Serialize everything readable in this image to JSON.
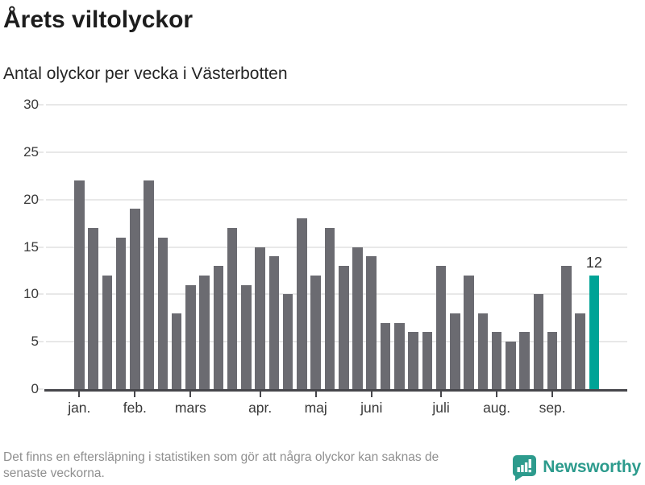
{
  "header": {
    "title": "Årets viltolyckor",
    "subtitle": "Antal olyckor per vecka i Västerbotten"
  },
  "chart_data": {
    "type": "bar",
    "title": "Årets viltolyckor",
    "subtitle": "Antal olyckor per vecka i Västerbotten",
    "xlabel": "",
    "ylabel": "",
    "ylim": [
      0,
      30
    ],
    "yticks": [
      0,
      5,
      10,
      15,
      20,
      25,
      30
    ],
    "grid": "horizontal",
    "legend": "none",
    "values": [
      22,
      17,
      12,
      16,
      19,
      22,
      16,
      8,
      11,
      12,
      13,
      17,
      11,
      15,
      14,
      10,
      18,
      12,
      17,
      13,
      15,
      14,
      7,
      7,
      6,
      6,
      13,
      8,
      12,
      8,
      6,
      5,
      6,
      10,
      6,
      13,
      8,
      12
    ],
    "month_ticks": [
      {
        "label": "jan.",
        "bar_index": 0
      },
      {
        "label": "feb.",
        "bar_index": 4
      },
      {
        "label": "mars",
        "bar_index": 8
      },
      {
        "label": "apr.",
        "bar_index": 13
      },
      {
        "label": "maj",
        "bar_index": 17
      },
      {
        "label": "juni",
        "bar_index": 21
      },
      {
        "label": "juli",
        "bar_index": 26
      },
      {
        "label": "aug.",
        "bar_index": 30
      },
      {
        "label": "sep.",
        "bar_index": 34
      }
    ],
    "highlight": {
      "bar_index": 37,
      "label": "12",
      "value": 12
    },
    "colors": {
      "bar": "#6b6b71",
      "highlight": "#00a396",
      "grid": "#e8e8e8",
      "axis": "#46464b",
      "tick_label": "#3a3a3a"
    }
  },
  "footer": {
    "note_line1": "Det finns en eftersläpning i statistiken som gör att några olyckor kan saknas de",
    "note_line2": "senaste veckorna.",
    "brand": {
      "name": "Newsworthy",
      "color": "#2d9b8d",
      "icon": "newsworthy-speech-bubble-bar-chart-icon"
    }
  }
}
